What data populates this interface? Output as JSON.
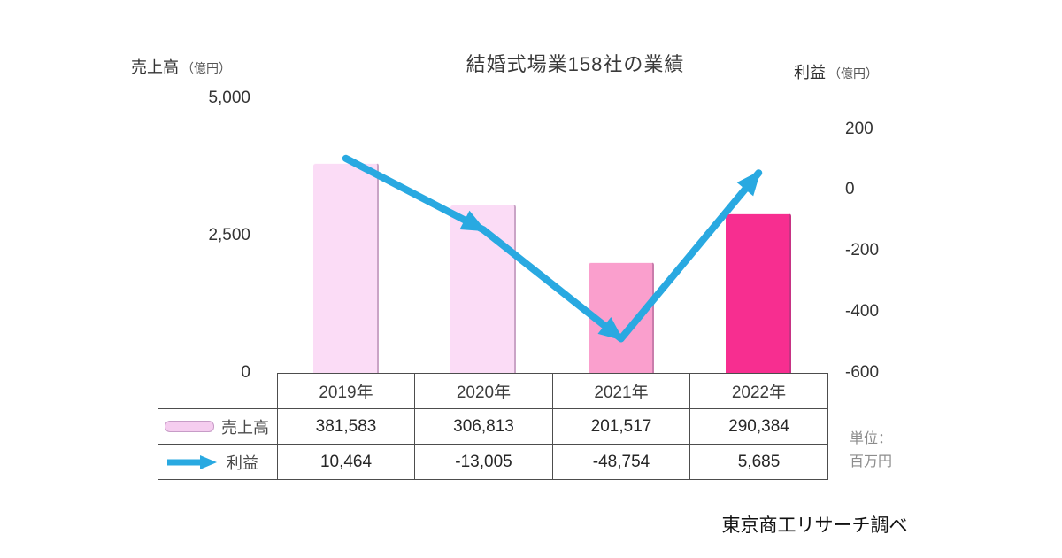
{
  "title": "結婚式場業158社の業績",
  "left_axis": {
    "title": "売上高",
    "unit": "（億円）",
    "ticks": [
      "5,000",
      "2,500",
      "0"
    ]
  },
  "right_axis": {
    "title": "利益",
    "unit": "（億円）",
    "ticks": [
      "200",
      "0",
      "-200",
      "-400",
      "-600"
    ]
  },
  "table": {
    "columns": [
      "2019年",
      "2020年",
      "2021年",
      "2022年"
    ],
    "rows": [
      {
        "legend": "売上高",
        "values": [
          "381,583",
          "306,813",
          "201,517",
          "290,384"
        ]
      },
      {
        "legend": "利益",
        "values": [
          "10,464",
          "-13,005",
          "-48,754",
          "5,685"
        ]
      }
    ]
  },
  "unit_note": {
    "line1": "単位：",
    "line2": "百万円"
  },
  "source": "東京商工リサーチ調べ",
  "icons": {
    "sales_swatch": "rounded-pink-bar",
    "profit_swatch": "blue-right-arrow"
  },
  "colors": {
    "bars": [
      "#FBDCF6",
      "#FBDCF6",
      "#FA9FCD",
      "#F72E90"
    ],
    "legend_swatch": "#F5CDEF",
    "line": "#29A9E1",
    "table_border": "#4d4d4d"
  },
  "chart_data": {
    "type": "combo",
    "title": "結婚式場業158社の業績",
    "categories": [
      "2019年",
      "2020年",
      "2021年",
      "2022年"
    ],
    "series": [
      {
        "name": "売上高",
        "type": "bar",
        "axis": "left",
        "unit": "百万円",
        "values": [
          381583,
          306813,
          201517,
          290384
        ]
      },
      {
        "name": "利益",
        "type": "line",
        "axis": "right",
        "unit": "百万円",
        "values": [
          10464,
          -13005,
          -48754,
          5685
        ]
      }
    ],
    "left_axis": {
      "label": "売上高（億円）",
      "ylim": [
        0,
        5000
      ],
      "ticks": [
        5000,
        2500,
        0
      ]
    },
    "right_axis": {
      "label": "利益（億円）",
      "ylim": [
        -600,
        200
      ],
      "ticks": [
        200,
        0,
        -200,
        -400,
        -600
      ]
    },
    "grid": false,
    "legend_position": "table-left",
    "notes": "axes in 億円, table values in 百万円; profit line drawn as arrow segments"
  }
}
